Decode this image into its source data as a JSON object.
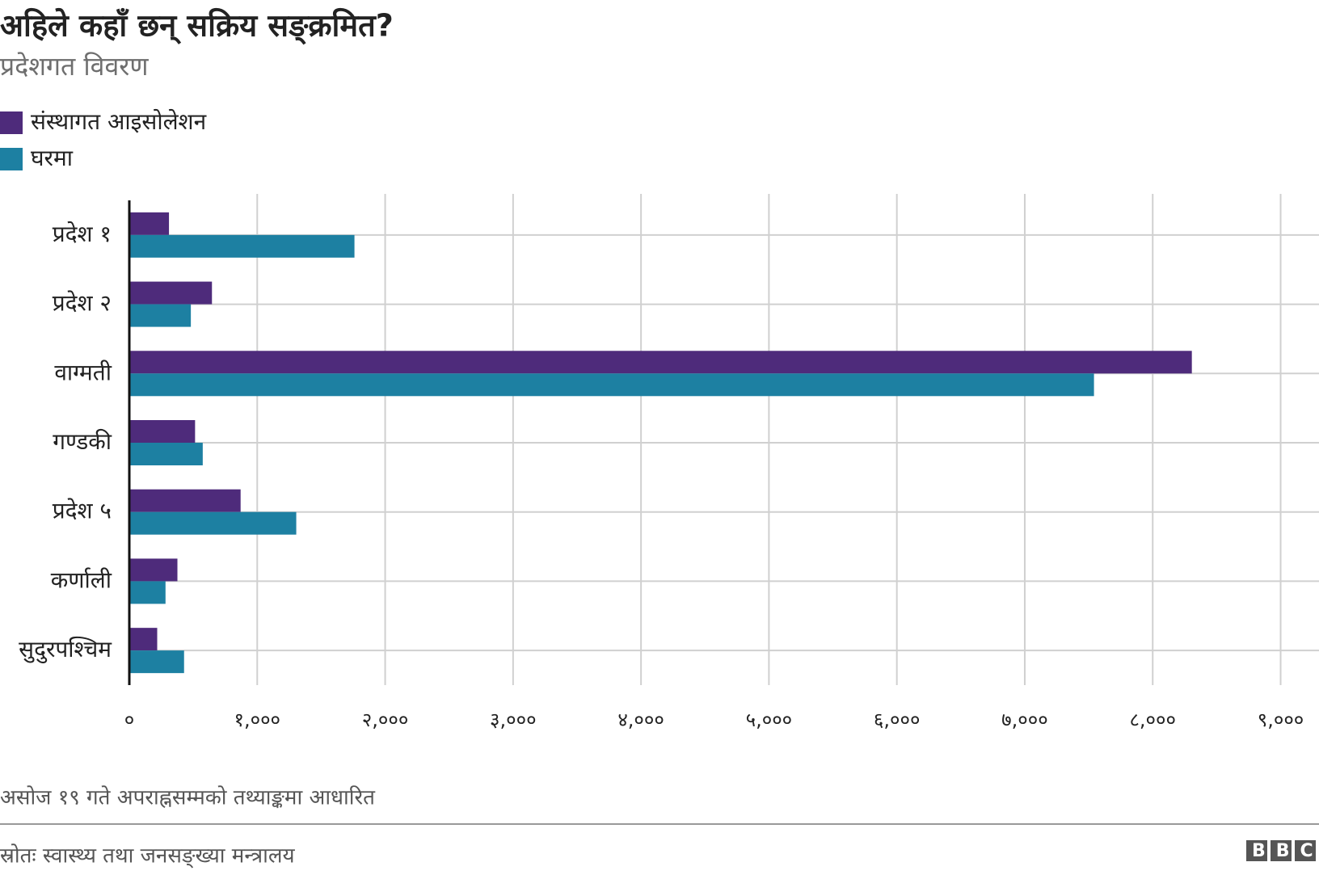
{
  "chart_data": {
    "type": "hbar",
    "title": "अहिले कहाँ छन् सक्रिय सङ्क्रमित?",
    "subtitle": "प्रदेशगत विवरण",
    "categories": [
      "प्रदेश १",
      "प्रदेश २",
      "वाग्मती",
      "गण्डकी",
      "प्रदेश ५",
      "कर्णाली",
      "सुदुरपश्चिम"
    ],
    "series": [
      {
        "name": "संस्थागत आइसोलेशन",
        "color": "#4e2b7b",
        "values": [
          310,
          646,
          8306,
          514,
          870,
          376,
          218
        ]
      },
      {
        "name": "घरमा",
        "color": "#1d80a2",
        "values": [
          1760,
          481,
          7541,
          574,
          1305,
          283,
          428
        ]
      }
    ],
    "xlim": [
      0,
      9300
    ],
    "xticks": [
      {
        "value": 0,
        "label": "०"
      },
      {
        "value": 1000,
        "label": "१,०००"
      },
      {
        "value": 2000,
        "label": "२,०००"
      },
      {
        "value": 3000,
        "label": "३,०००"
      },
      {
        "value": 4000,
        "label": "४,०००"
      },
      {
        "value": 5000,
        "label": "५,०००"
      },
      {
        "value": 6000,
        "label": "६,०००"
      },
      {
        "value": 7000,
        "label": "७,०००"
      },
      {
        "value": 8000,
        "label": "८,०००"
      },
      {
        "value": 9000,
        "label": "९,०००"
      }
    ],
    "grid": true,
    "legend": "top-left",
    "note": "असोज १९ गते अपराह्नसम्मको तथ्याङ्कमा आधारित",
    "source": "स्रोतः स्वास्थ्य तथा जनसङ्ख्या मन्त्रालय",
    "logo": "BBC"
  }
}
